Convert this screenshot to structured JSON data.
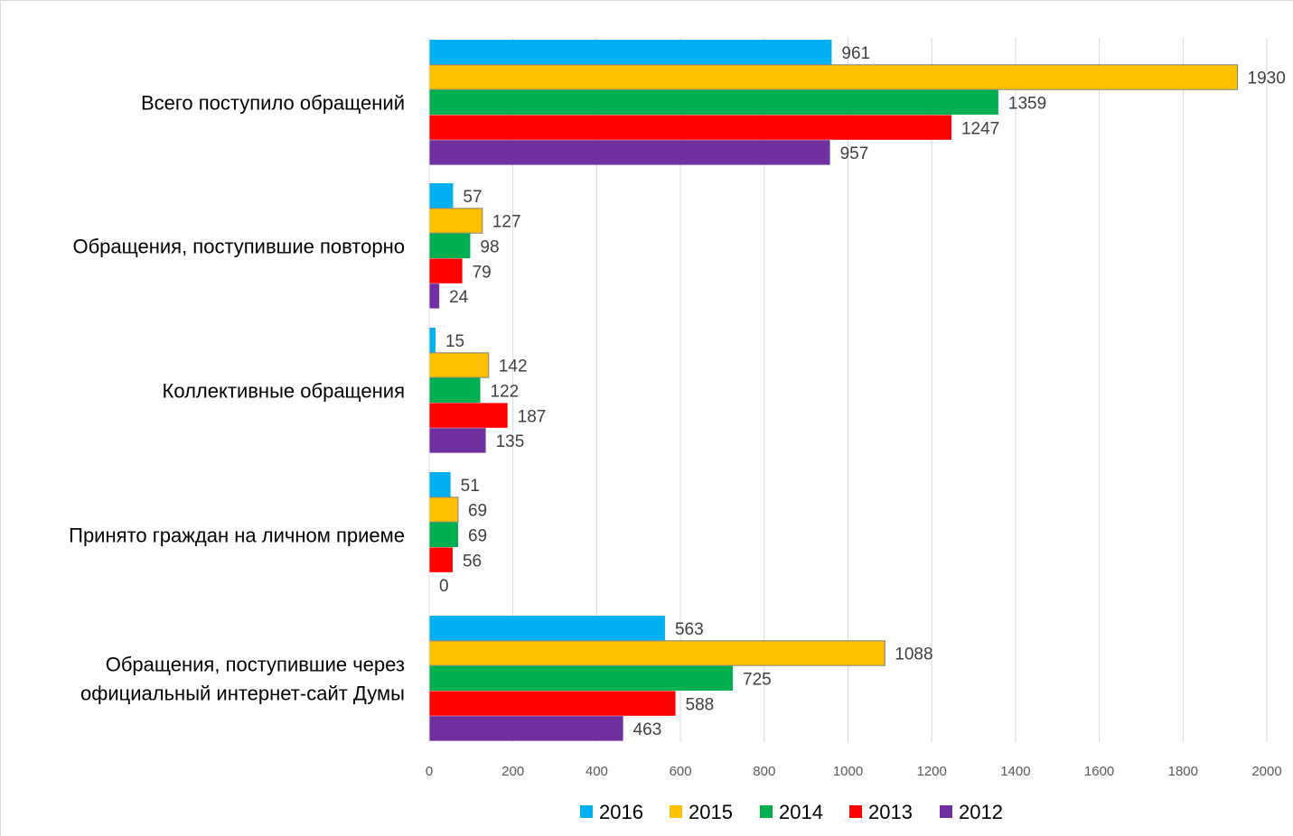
{
  "chart_data": {
    "type": "bar",
    "orientation": "horizontal",
    "categories": [
      [
        "Всего поступило обращений"
      ],
      [
        "Обращения, поступившие повторно"
      ],
      [
        "Коллективные обращения"
      ],
      [
        "Принято граждан на личном приеме"
      ],
      [
        "Обращения, поступившие через",
        "официальный интернет-сайт Думы"
      ]
    ],
    "series": [
      {
        "name": "2016",
        "color": "#00B0F0",
        "values": [
          961,
          57,
          15,
          51,
          563
        ]
      },
      {
        "name": "2015",
        "color": "#FFC000",
        "values": [
          1930,
          127,
          142,
          69,
          1088
        ]
      },
      {
        "name": "2014",
        "color": "#00B050",
        "values": [
          1359,
          98,
          122,
          69,
          725
        ]
      },
      {
        "name": "2013",
        "color": "#FF0000",
        "values": [
          1247,
          79,
          187,
          56,
          588
        ]
      },
      {
        "name": "2012",
        "color": "#7030A0",
        "values": [
          957,
          24,
          135,
          0,
          463
        ]
      }
    ],
    "xlim": [
      0,
      2000
    ],
    "xticks": [
      "0",
      "200",
      "400",
      "600",
      "800",
      "1000",
      "1200",
      "1400",
      "1600",
      "1800",
      "2000"
    ],
    "grid": true,
    "legend_position": "bottom"
  }
}
